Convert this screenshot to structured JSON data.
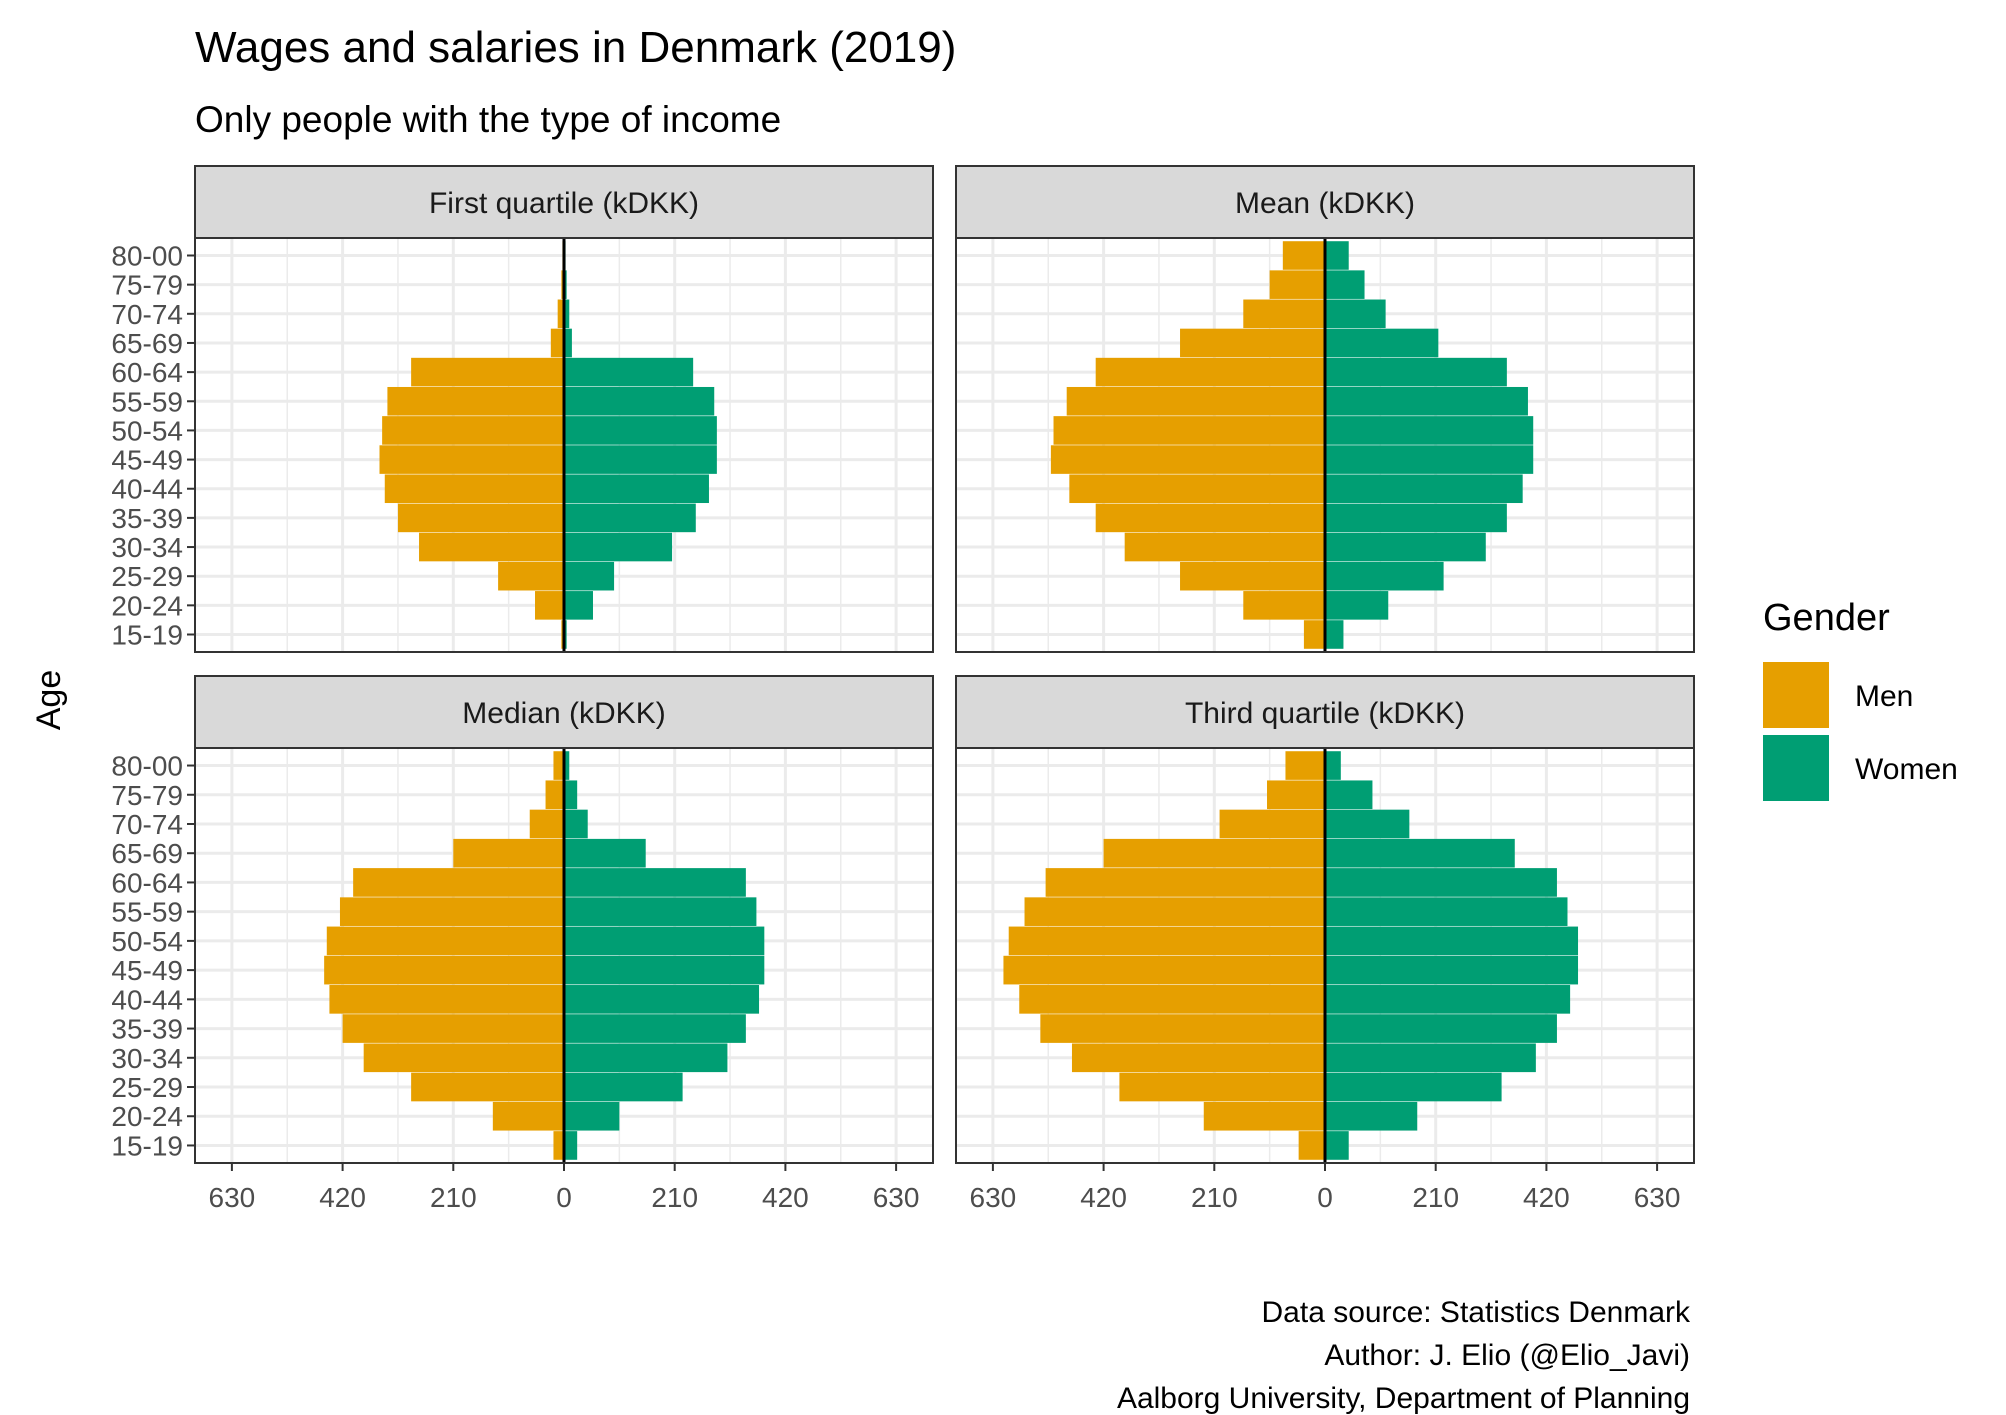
{
  "chart_data": {
    "type": "bar",
    "title": "Wages and salaries in Denmark (2019)",
    "subtitle": "Only people with the type of income",
    "ylabel": "Age",
    "xlabel": "",
    "age_groups": [
      "15-19",
      "20-24",
      "25-29",
      "30-34",
      "35-39",
      "40-44",
      "45-49",
      "50-54",
      "55-59",
      "60-64",
      "65-69",
      "70-74",
      "75-79",
      "80-00"
    ],
    "x_ticks": [
      "630",
      "420",
      "210",
      "0",
      "210",
      "420",
      "630"
    ],
    "xlim": [
      -700,
      700
    ],
    "grid": true,
    "legend": {
      "title": "Gender",
      "position": "right",
      "entries": [
        {
          "name": "Men",
          "color": "#E69F00"
        },
        {
          "name": "Women",
          "color": "#009E73"
        }
      ]
    },
    "facets": [
      {
        "label": "First quartile (kDKK)",
        "men": [
          5,
          55,
          125,
          275,
          315,
          340,
          350,
          345,
          335,
          290,
          25,
          12,
          5,
          3
        ],
        "women": [
          5,
          55,
          95,
          205,
          250,
          275,
          290,
          290,
          285,
          245,
          15,
          10,
          5,
          3
        ]
      },
      {
        "label": "Mean (kDKK)",
        "men": [
          40,
          155,
          275,
          380,
          435,
          485,
          520,
          515,
          490,
          435,
          275,
          155,
          105,
          80
        ],
        "women": [
          35,
          120,
          225,
          305,
          345,
          375,
          395,
          395,
          385,
          345,
          215,
          115,
          75,
          45
        ]
      },
      {
        "label": "Median (kDKK)",
        "men": [
          20,
          135,
          290,
          380,
          420,
          445,
          455,
          450,
          425,
          400,
          210,
          65,
          35,
          20
        ],
        "women": [
          25,
          105,
          225,
          310,
          345,
          370,
          380,
          380,
          365,
          345,
          155,
          45,
          25,
          10
        ]
      },
      {
        "label": "Third quartile (kDKK)",
        "men": [
          50,
          230,
          390,
          480,
          540,
          580,
          610,
          600,
          570,
          530,
          420,
          200,
          110,
          75
        ],
        "women": [
          45,
          175,
          335,
          400,
          440,
          465,
          480,
          480,
          460,
          440,
          360,
          160,
          90,
          30
        ]
      }
    ],
    "caption": [
      "Data source: Statistics Denmark ",
      "Author: J. Elio (@Elio_Javi)",
      "Aalborg University, Department of Planning"
    ],
    "colors": {
      "men": "#E69F00",
      "women": "#009E73",
      "strip_fill": "#D9D9D9",
      "grid": "#EBEBEB",
      "border": "#333333",
      "zero_line": "#000000"
    }
  }
}
